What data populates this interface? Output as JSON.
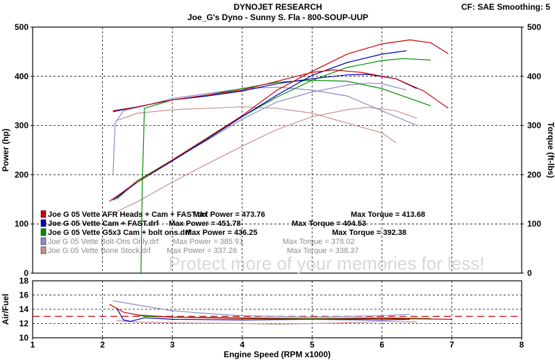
{
  "header": {
    "title": "DYNOJET RESEARCH",
    "subtitle": "Joe_G's Dyno - Sunny S. Fla - 800-SOUP-UUP",
    "settings": "CF: SAE  Smoothing: 5"
  },
  "chart_data": [
    {
      "type": "line",
      "ylabel_left": "Power (hp)",
      "ylabel_right": "Torque (ft-lbs)",
      "xlim": [
        1,
        8
      ],
      "ylim": [
        0,
        500
      ],
      "y_ticks": [
        "0",
        "100",
        "200",
        "300",
        "400",
        "500"
      ],
      "grid": true,
      "watermark": "Protect more of your memories for less!",
      "legend": [
        {
          "file": "Joe G 05 Vette AFR Heads + Cam + FAST.drf",
          "power_label": "Max Power = 473.76",
          "torque_label": "Max Torque = 413.68",
          "color": "#c80000"
        },
        {
          "file": "Joe G 05 Vette Cam + FAST.drf",
          "power_label": "Max Power = 451.78",
          "torque_label": "Max Torque = 404.53",
          "color": "#0000b4"
        },
        {
          "file": "Joe G 05 Vette G5x3 Cam + bolt ons.drf",
          "power_label": "Max Power = 436.25",
          "torque_label": "Max Torque = 392.38",
          "color": "#008c00"
        },
        {
          "file": "Joe G 05 Vette Bolt-Ons Only.drf",
          "power_label": "Max Power = 385.91",
          "torque_label": "Max Torque = 378.02",
          "color": "#8a8ac8"
        },
        {
          "file": "Joe G 05 Vette Bone Stock.drf",
          "power_label": "Max Power = 337.26",
          "torque_label": "Max Torque = 338.37",
          "color": "#c89090"
        }
      ],
      "series": [
        {
          "color": "#c80000",
          "power": [
            [
              2.1,
              146
            ],
            [
              2.5,
              185
            ],
            [
              3,
              230
            ],
            [
              3.5,
              275
            ],
            [
              4,
              320
            ],
            [
              4.5,
              372
            ],
            [
              5,
              410
            ],
            [
              5.5,
              445
            ],
            [
              6,
              466
            ],
            [
              6.4,
              474
            ],
            [
              6.7,
              468
            ],
            [
              6.95,
              446
            ]
          ],
          "torque": [
            [
              2.15,
              330
            ],
            [
              2.5,
              338
            ],
            [
              3,
              352
            ],
            [
              3.5,
              362
            ],
            [
              4,
              372
            ],
            [
              4.5,
              390
            ],
            [
              5,
              408
            ],
            [
              5.3,
              413
            ],
            [
              5.7,
              408
            ],
            [
              6.2,
              395
            ],
            [
              6.6,
              370
            ],
            [
              6.95,
              335
            ]
          ]
        },
        {
          "color": "#0000b4",
          "power": [
            [
              2.15,
              148
            ],
            [
              2.5,
              185
            ],
            [
              3,
              228
            ],
            [
              3.5,
              272
            ],
            [
              4,
              318
            ],
            [
              4.5,
              362
            ],
            [
              5,
              402
            ],
            [
              5.5,
              428
            ],
            [
              6,
              445
            ],
            [
              6.35,
              452
            ]
          ],
          "torque": [
            [
              2.15,
              328
            ],
            [
              2.5,
              338
            ],
            [
              3,
              352
            ],
            [
              3.5,
              360
            ],
            [
              4,
              370
            ],
            [
              4.5,
              385
            ],
            [
              5,
              395
            ],
            [
              5.5,
              403
            ],
            [
              5.8,
              404
            ],
            [
              6.2,
              395
            ],
            [
              6.5,
              375
            ]
          ]
        },
        {
          "color": "#008c00",
          "power": [
            [
              2.2,
              150
            ],
            [
              2.5,
              188
            ],
            [
              3,
              230
            ],
            [
              3.5,
              274
            ],
            [
              4,
              318
            ],
            [
              4.5,
              358
            ],
            [
              5,
              392
            ],
            [
              5.5,
              418
            ],
            [
              6,
              432
            ],
            [
              6.3,
              436
            ],
            [
              6.7,
              433
            ]
          ],
          "torque": [
            [
              2.55,
              0
            ],
            [
              2.57,
              180
            ],
            [
              2.6,
              335
            ],
            [
              3,
              352
            ],
            [
              3.5,
              362
            ],
            [
              4,
              375
            ],
            [
              4.5,
              388
            ],
            [
              5,
              392
            ],
            [
              5.5,
              390
            ],
            [
              6,
              375
            ],
            [
              6.4,
              355
            ],
            [
              6.7,
              340
            ]
          ]
        },
        {
          "color": "#8a8ac8",
          "power": [
            [
              2.15,
              150
            ],
            [
              2.5,
              188
            ],
            [
              3,
              230
            ],
            [
              3.5,
              270
            ],
            [
              4,
              313
            ],
            [
              4.5,
              348
            ],
            [
              5,
              368
            ],
            [
              5.5,
              382
            ],
            [
              5.8,
              386
            ],
            [
              6,
              385
            ],
            [
              6.35,
              372
            ]
          ],
          "torque": [
            [
              2.15,
              200
            ],
            [
              2.18,
              305
            ],
            [
              2.3,
              330
            ],
            [
              2.6,
              340
            ],
            [
              3,
              355
            ],
            [
              3.5,
              365
            ],
            [
              4,
              375
            ],
            [
              4.5,
              378
            ],
            [
              5,
              372
            ],
            [
              5.5,
              360
            ],
            [
              6,
              330
            ],
            [
              6.5,
              300
            ]
          ]
        },
        {
          "color": "#c89090",
          "power": [
            [
              2.2,
              125
            ],
            [
              2.5,
              145
            ],
            [
              3,
              185
            ],
            [
              3.5,
              222
            ],
            [
              4,
              258
            ],
            [
              4.5,
              292
            ],
            [
              5,
              318
            ],
            [
              5.5,
              332
            ],
            [
              5.8,
              337
            ],
            [
              6.2,
              330
            ],
            [
              6.5,
              315
            ]
          ],
          "torque": [
            [
              2.2,
              310
            ],
            [
              2.5,
              325
            ],
            [
              3,
              332
            ],
            [
              3.5,
              335
            ],
            [
              4,
              338
            ],
            [
              4.5,
              335
            ],
            [
              5,
              325
            ],
            [
              5.5,
              305
            ],
            [
              6,
              285
            ],
            [
              6.2,
              265
            ]
          ]
        }
      ]
    },
    {
      "type": "line",
      "ylabel": "Air/Fuel",
      "xlabel": "Engine Speed (RPM x1000)",
      "xlim": [
        1,
        8
      ],
      "ylim": [
        10,
        18
      ],
      "x_ticks": [
        "1",
        "2",
        "3",
        "4",
        "5",
        "6",
        "7",
        "8"
      ],
      "y_ticks": [
        "10",
        "12",
        "14",
        "16",
        "18"
      ],
      "reference_line": 13,
      "grid": true,
      "series": [
        {
          "color": "#c80000",
          "values": [
            [
              2.1,
              14.7
            ],
            [
              2.3,
              13.6
            ],
            [
              2.5,
              13.2
            ],
            [
              3,
              12.9
            ],
            [
              4,
              12.7
            ],
            [
              5,
              12.6
            ],
            [
              6,
              12.7
            ],
            [
              7,
              12.6
            ]
          ]
        },
        {
          "color": "#0000b4",
          "values": [
            [
              2.2,
              14.2
            ],
            [
              2.3,
              12.5
            ],
            [
              2.4,
              12.3
            ],
            [
              2.6,
              12.8
            ],
            [
              3,
              12.6
            ],
            [
              4,
              12.5
            ],
            [
              5,
              12.6
            ],
            [
              6,
              12.5
            ],
            [
              6.4,
              12.6
            ]
          ]
        },
        {
          "color": "#008c00",
          "values": [
            [
              2.4,
              13.4
            ],
            [
              2.6,
              13.0
            ],
            [
              3,
              12.9
            ],
            [
              4,
              12.8
            ],
            [
              5,
              12.7
            ],
            [
              6,
              12.8
            ],
            [
              6.7,
              12.7
            ]
          ]
        },
        {
          "color": "#8a8ac8",
          "values": [
            [
              2.15,
              15.2
            ],
            [
              2.5,
              14.6
            ],
            [
              3,
              13.8
            ],
            [
              3.5,
              13.4
            ],
            [
              4,
              13.1
            ],
            [
              5,
              12.9
            ],
            [
              6,
              13.1
            ],
            [
              6.4,
              13.3
            ]
          ]
        },
        {
          "color": "#c89090",
          "values": [
            [
              2.2,
              12.4
            ],
            [
              2.5,
              12.2
            ],
            [
              3,
              12.1
            ],
            [
              4,
              12.0
            ],
            [
              4.5,
              11.9
            ],
            [
              5,
              12.0
            ],
            [
              5.5,
              12.1
            ],
            [
              6,
              12.3
            ],
            [
              6.5,
              12.2
            ]
          ]
        }
      ]
    }
  ]
}
